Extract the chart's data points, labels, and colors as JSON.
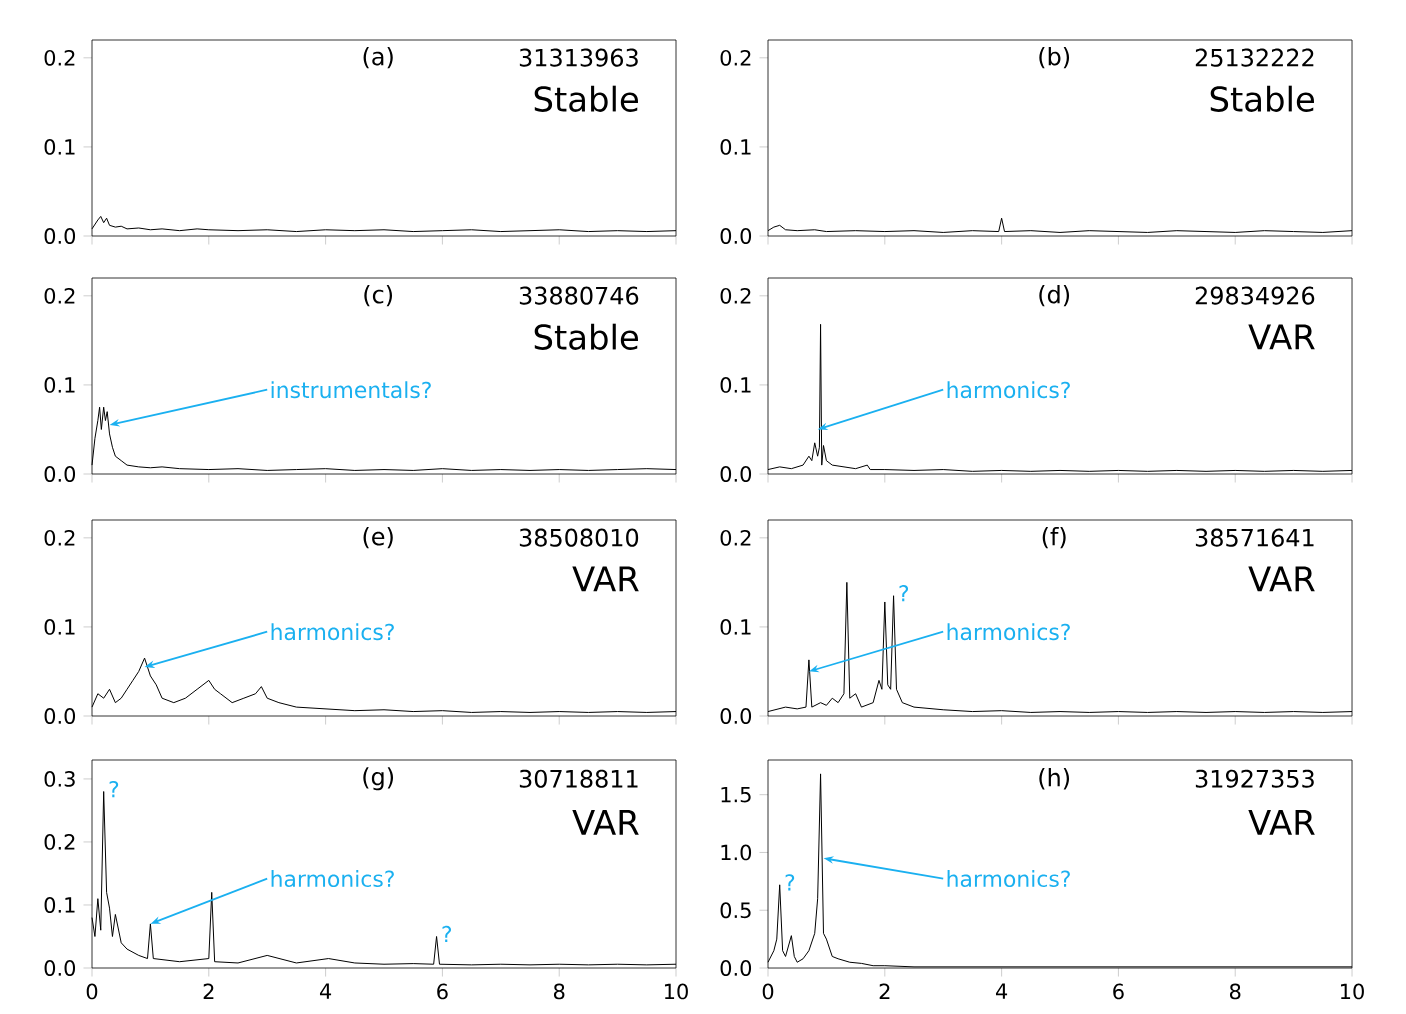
{
  "chart_data": [
    {
      "type": "line",
      "title": "(a)",
      "subtitle": "31313963",
      "annotations": [
        "Stable"
      ],
      "color": "#000000",
      "tick_labels": "y",
      "xlim": [
        0,
        10
      ],
      "ylim": [
        0,
        0.22
      ],
      "xticks": [
        0,
        2,
        4,
        6,
        8,
        10
      ],
      "yticks": [
        {
          "value": 0,
          "label": "0.0"
        },
        {
          "value": 0.1,
          "label": "0.1"
        },
        {
          "value": 0.2,
          "label": "0.2"
        }
      ],
      "x": [
        0,
        0.1,
        0.15,
        0.2,
        0.25,
        0.3,
        0.4,
        0.5,
        0.6,
        0.8,
        1,
        1.2,
        1.5,
        1.8,
        2,
        2.5,
        3,
        3.5,
        4,
        4.5,
        5,
        5.5,
        6,
        6.5,
        7,
        7.5,
        8,
        8.5,
        9,
        9.5,
        10
      ],
      "values": [
        0.008,
        0.018,
        0.022,
        0.015,
        0.02,
        0.012,
        0.01,
        0.011,
        0.008,
        0.009,
        0.007,
        0.008,
        0.006,
        0.008,
        0.007,
        0.006,
        0.007,
        0.005,
        0.007,
        0.006,
        0.007,
        0.005,
        0.006,
        0.007,
        0.005,
        0.006,
        0.007,
        0.005,
        0.006,
        0.005,
        0.006
      ]
    },
    {
      "type": "line",
      "title": "(b)",
      "subtitle": "25132222",
      "annotations": [
        "Stable"
      ],
      "color": "#000000",
      "tick_labels": "y",
      "xlim": [
        0,
        10
      ],
      "ylim": [
        0,
        0.22
      ],
      "xticks": [
        0,
        2,
        4,
        6,
        8,
        10
      ],
      "yticks": [
        {
          "value": 0,
          "label": "0.0"
        },
        {
          "value": 0.1,
          "label": "0.1"
        },
        {
          "value": 0.2,
          "label": "0.2"
        }
      ],
      "x": [
        0,
        0.1,
        0.2,
        0.3,
        0.5,
        0.8,
        1,
        1.5,
        2,
        2.5,
        3,
        3.5,
        3.95,
        4,
        4.05,
        4.5,
        5,
        5.5,
        6,
        6.5,
        7,
        7.5,
        8,
        8.5,
        9,
        9.5,
        10
      ],
      "values": [
        0.006,
        0.01,
        0.012,
        0.007,
        0.006,
        0.007,
        0.005,
        0.006,
        0.005,
        0.006,
        0.004,
        0.006,
        0.005,
        0.02,
        0.005,
        0.006,
        0.004,
        0.006,
        0.005,
        0.004,
        0.006,
        0.005,
        0.004,
        0.006,
        0.005,
        0.004,
        0.006
      ]
    },
    {
      "type": "line",
      "title": "(c)",
      "subtitle": "33880746",
      "annotations": [
        "Stable",
        {
          "text": "instrumentals?",
          "x": 0.3,
          "y": 0.055
        }
      ],
      "color": "#000000",
      "tick_labels": "y",
      "xlim": [
        0,
        10
      ],
      "ylim": [
        0,
        0.22
      ],
      "xticks": [
        0,
        2,
        4,
        6,
        8,
        10
      ],
      "yticks": [
        {
          "value": 0,
          "label": "0.0"
        },
        {
          "value": 0.1,
          "label": "0.1"
        },
        {
          "value": 0.2,
          "label": "0.2"
        }
      ],
      "x": [
        0,
        0.05,
        0.1,
        0.13,
        0.16,
        0.2,
        0.23,
        0.26,
        0.3,
        0.35,
        0.4,
        0.5,
        0.6,
        0.8,
        1,
        1.2,
        1.5,
        2,
        2.5,
        3,
        3.5,
        4,
        4.5,
        5,
        5.5,
        6,
        6.5,
        7,
        7.5,
        8,
        8.5,
        9,
        9.5,
        10
      ],
      "values": [
        0.01,
        0.04,
        0.06,
        0.075,
        0.05,
        0.075,
        0.06,
        0.07,
        0.045,
        0.03,
        0.02,
        0.015,
        0.01,
        0.008,
        0.007,
        0.008,
        0.006,
        0.005,
        0.006,
        0.004,
        0.005,
        0.006,
        0.004,
        0.005,
        0.004,
        0.006,
        0.004,
        0.005,
        0.004,
        0.005,
        0.004,
        0.005,
        0.006,
        0.005
      ]
    },
    {
      "type": "line",
      "title": "(d)",
      "subtitle": "29834926",
      "annotations": [
        "VAR",
        {
          "text": "harmonics?",
          "x": 0.85,
          "y": 0.05
        }
      ],
      "color": "#000000",
      "tick_labels": "y",
      "xlim": [
        0,
        10
      ],
      "ylim": [
        0,
        0.22
      ],
      "xticks": [
        0,
        2,
        4,
        6,
        8,
        10
      ],
      "yticks": [
        {
          "value": 0,
          "label": "0.0"
        },
        {
          "value": 0.1,
          "label": "0.1"
        },
        {
          "value": 0.2,
          "label": "0.2"
        }
      ],
      "x": [
        0,
        0.2,
        0.4,
        0.6,
        0.7,
        0.75,
        0.8,
        0.85,
        0.88,
        0.9,
        0.92,
        0.95,
        1,
        1.1,
        1.3,
        1.5,
        1.7,
        1.75,
        2,
        2.5,
        3,
        3.5,
        4,
        4.5,
        5,
        5.5,
        6,
        6.5,
        7,
        7.5,
        8,
        8.5,
        9,
        9.5,
        10
      ],
      "values": [
        0.005,
        0.008,
        0.006,
        0.01,
        0.02,
        0.015,
        0.035,
        0.02,
        0.03,
        0.168,
        0.01,
        0.032,
        0.015,
        0.01,
        0.008,
        0.006,
        0.01,
        0.005,
        0.005,
        0.004,
        0.005,
        0.003,
        0.004,
        0.003,
        0.004,
        0.003,
        0.004,
        0.003,
        0.004,
        0.003,
        0.004,
        0.003,
        0.004,
        0.003,
        0.004
      ]
    },
    {
      "type": "line",
      "title": "(e)",
      "subtitle": "38508010",
      "annotations": [
        "VAR",
        {
          "text": "harmonics?",
          "x": 0.9,
          "y": 0.055
        }
      ],
      "color": "#000000",
      "tick_labels": "y",
      "xlim": [
        0,
        10
      ],
      "ylim": [
        0,
        0.22
      ],
      "xticks": [
        0,
        2,
        4,
        6,
        8,
        10
      ],
      "yticks": [
        {
          "value": 0,
          "label": "0.0"
        },
        {
          "value": 0.1,
          "label": "0.1"
        },
        {
          "value": 0.2,
          "label": "0.2"
        }
      ],
      "x": [
        0,
        0.1,
        0.2,
        0.3,
        0.4,
        0.5,
        0.6,
        0.7,
        0.8,
        0.9,
        1,
        1.1,
        1.2,
        1.4,
        1.6,
        1.8,
        1.9,
        2,
        2.1,
        2.2,
        2.4,
        2.6,
        2.8,
        2.9,
        3,
        3.2,
        3.5,
        4,
        4.5,
        5,
        5.5,
        6,
        6.5,
        7,
        7.5,
        8,
        8.5,
        9,
        9.5,
        10
      ],
      "values": [
        0.01,
        0.025,
        0.02,
        0.03,
        0.015,
        0.02,
        0.03,
        0.04,
        0.05,
        0.065,
        0.045,
        0.035,
        0.02,
        0.015,
        0.02,
        0.03,
        0.035,
        0.04,
        0.03,
        0.025,
        0.015,
        0.02,
        0.025,
        0.033,
        0.02,
        0.015,
        0.01,
        0.008,
        0.006,
        0.007,
        0.005,
        0.006,
        0.004,
        0.005,
        0.004,
        0.005,
        0.004,
        0.005,
        0.004,
        0.005
      ]
    },
    {
      "type": "line",
      "title": "(f)",
      "subtitle": "38571641",
      "annotations": [
        "VAR",
        {
          "text": "harmonics?",
          "x": 0.7,
          "y": 0.05
        },
        {
          "text": "?",
          "x": 2.15,
          "y": 0.135
        }
      ],
      "color": "#000000",
      "tick_labels": "y",
      "xlim": [
        0,
        10
      ],
      "ylim": [
        0,
        0.22
      ],
      "xticks": [
        0,
        2,
        4,
        6,
        8,
        10
      ],
      "yticks": [
        {
          "value": 0,
          "label": "0.0"
        },
        {
          "value": 0.1,
          "label": "0.1"
        },
        {
          "value": 0.2,
          "label": "0.2"
        }
      ],
      "x": [
        0,
        0.3,
        0.5,
        0.65,
        0.7,
        0.75,
        0.9,
        1,
        1.1,
        1.2,
        1.3,
        1.35,
        1.4,
        1.5,
        1.6,
        1.8,
        1.9,
        1.95,
        2,
        2.05,
        2.1,
        2.15,
        2.2,
        2.3,
        2.5,
        3,
        3.5,
        4,
        4.5,
        5,
        5.5,
        6,
        6.5,
        7,
        7.5,
        8,
        8.5,
        9,
        9.5,
        10
      ],
      "values": [
        0.005,
        0.01,
        0.008,
        0.01,
        0.063,
        0.01,
        0.015,
        0.012,
        0.02,
        0.015,
        0.025,
        0.15,
        0.02,
        0.025,
        0.01,
        0.015,
        0.04,
        0.03,
        0.128,
        0.035,
        0.03,
        0.135,
        0.03,
        0.015,
        0.01,
        0.007,
        0.005,
        0.006,
        0.004,
        0.005,
        0.004,
        0.005,
        0.004,
        0.005,
        0.004,
        0.005,
        0.004,
        0.005,
        0.004,
        0.005
      ]
    },
    {
      "type": "line",
      "title": "(g)",
      "subtitle": "30718811",
      "annotations": [
        "VAR",
        {
          "text": "harmonics?",
          "x": 1.0,
          "y": 0.07
        },
        {
          "text": "?",
          "x": 0.2,
          "y": 0.28
        },
        {
          "text": "?",
          "x": 5.9,
          "y": 0.05
        }
      ],
      "color": "#000000",
      "xlim": [
        0,
        10
      ],
      "ylim": [
        0,
        0.33
      ],
      "xticks": [
        0,
        2,
        4,
        6,
        8,
        10
      ],
      "yticks": [
        {
          "value": 0,
          "label": "0.0"
        },
        {
          "value": 0.1,
          "label": "0.1"
        },
        {
          "value": 0.2,
          "label": "0.2"
        },
        {
          "value": 0.3,
          "label": "0.3"
        }
      ],
      "x": [
        0,
        0.05,
        0.1,
        0.15,
        0.2,
        0.25,
        0.3,
        0.35,
        0.4,
        0.5,
        0.6,
        0.8,
        0.95,
        1,
        1.05,
        1.5,
        2,
        2.05,
        2.1,
        2.5,
        3,
        3.5,
        4.05,
        4.5,
        5,
        5.5,
        5.85,
        5.9,
        5.95,
        6.5,
        7,
        7.5,
        8,
        8.5,
        9,
        9.5,
        10
      ],
      "values": [
        0.08,
        0.05,
        0.11,
        0.06,
        0.28,
        0.12,
        0.095,
        0.05,
        0.085,
        0.04,
        0.03,
        0.02,
        0.015,
        0.07,
        0.015,
        0.01,
        0.015,
        0.12,
        0.01,
        0.008,
        0.02,
        0.008,
        0.015,
        0.008,
        0.006,
        0.007,
        0.006,
        0.05,
        0.006,
        0.005,
        0.006,
        0.005,
        0.006,
        0.005,
        0.006,
        0.005,
        0.006
      ]
    },
    {
      "type": "line",
      "title": "(h)",
      "subtitle": "31927353",
      "annotations": [
        "VAR",
        {
          "text": "harmonics?",
          "x": 0.95,
          "y": 0.95
        },
        {
          "text": "?",
          "x": 0.2,
          "y": 0.72
        }
      ],
      "color": "#000000",
      "xlim": [
        0,
        10
      ],
      "ylim": [
        0,
        1.8
      ],
      "xticks": [
        0,
        2,
        4,
        6,
        8,
        10
      ],
      "yticks": [
        {
          "value": 0,
          "label": "0.0"
        },
        {
          "value": 0.5,
          "label": "0.5"
        },
        {
          "value": 1.0,
          "label": "1.0"
        },
        {
          "value": 1.5,
          "label": "1.5"
        }
      ],
      "x": [
        0,
        0.1,
        0.15,
        0.2,
        0.25,
        0.3,
        0.4,
        0.45,
        0.5,
        0.6,
        0.7,
        0.8,
        0.85,
        0.9,
        0.95,
        1,
        1.1,
        1.2,
        1.4,
        1.6,
        1.8,
        2,
        2.5,
        3,
        3.5,
        4,
        4.5,
        5,
        5.5,
        6,
        6.5,
        7,
        7.5,
        8,
        8.5,
        9,
        9.5,
        10
      ],
      "values": [
        0.05,
        0.15,
        0.25,
        0.72,
        0.15,
        0.1,
        0.28,
        0.1,
        0.05,
        0.08,
        0.15,
        0.3,
        0.6,
        1.68,
        0.3,
        0.25,
        0.1,
        0.08,
        0.05,
        0.04,
        0.02,
        0.02,
        0.01,
        0.01,
        0.01,
        0.01,
        0.01,
        0.01,
        0.01,
        0.01,
        0.01,
        0.01,
        0.01,
        0.01,
        0.01,
        0.01,
        0.01,
        0.01
      ]
    }
  ]
}
